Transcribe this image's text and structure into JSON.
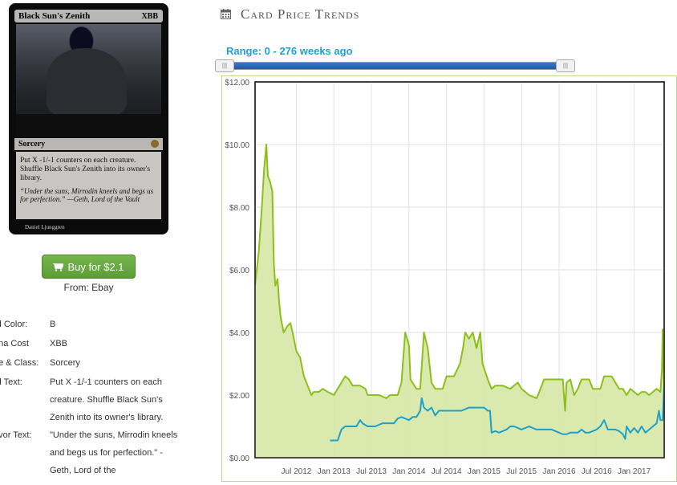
{
  "card": {
    "name": "Black Sun's Zenith",
    "mana_symbols": "XBB",
    "type_line": "Sorcery",
    "rules_text": "Put X -1/-1 counters on each creature. Shuffle Black Sun's Zenith into its owner's library.",
    "flavor_text": "“Under the suns, Mirrodin kneels and begs us for perfection.” —Geth, Lord of the Vault",
    "artist": "Daniel Ljunggren"
  },
  "buy": {
    "label": "Buy for $2.1",
    "icon": "cart-icon",
    "color": "#5fa33b"
  },
  "from": "From: Ebay",
  "attributes": [
    {
      "key": "rd Color:",
      "value": "B"
    },
    {
      "key": "ana Cost",
      "value": "XBB"
    },
    {
      "key": "pe & Class:",
      "value": "Sorcery"
    },
    {
      "key": "rd Text:",
      "value": "Put X -1/-1 counters on each creature. Shuffle Black Sun's Zenith into its owner's library."
    },
    {
      "key": "avor Text:",
      "value": "\"Under the suns, Mirrodin kneels and begs us for perfection.\" -Geth, Lord of the"
    }
  ],
  "trends": {
    "title": "Card Price Trends",
    "icon": "calendar-icon"
  },
  "range": {
    "label": "Range: 0 - 276 weeks ago",
    "min": 0,
    "max": 276,
    "handle_text": "|||"
  },
  "chart_data": {
    "type": "line",
    "x_labels": [
      "Jul 2012",
      "Jan 2013",
      "Jul 2013",
      "Jan 2014",
      "Jul 2014",
      "Jan 2015",
      "Jul 2015",
      "Jan 2016",
      "Jul 2016",
      "Jan 2017"
    ],
    "y_tick_labels": [
      "$0.00",
      "$2.00",
      "$4.00",
      "$6.00",
      "$8.00",
      "$10.00",
      "$12.00"
    ],
    "ylim": [
      0,
      12
    ],
    "xlim": [
      2011.95,
      2017.4
    ],
    "grid": true,
    "series": [
      {
        "color": "#8cbf1a",
        "fill": "#d6e8a6",
        "points": [
          [
            2011.95,
            5.5
          ],
          [
            2012.0,
            6.6
          ],
          [
            2012.04,
            8.0
          ],
          [
            2012.07,
            9.2
          ],
          [
            2012.1,
            10.0
          ],
          [
            2012.12,
            9.0
          ],
          [
            2012.15,
            8.8
          ],
          [
            2012.18,
            8.5
          ],
          [
            2012.2,
            6.2
          ],
          [
            2012.22,
            5.5
          ],
          [
            2012.25,
            5.7
          ],
          [
            2012.27,
            5.0
          ],
          [
            2012.29,
            4.5
          ],
          [
            2012.33,
            4.0
          ],
          [
            2012.38,
            4.2
          ],
          [
            2012.42,
            4.3
          ],
          [
            2012.45,
            4.0
          ],
          [
            2012.5,
            3.4
          ],
          [
            2012.55,
            3.2
          ],
          [
            2012.6,
            2.6
          ],
          [
            2012.65,
            2.3
          ],
          [
            2012.7,
            2.0
          ],
          [
            2012.73,
            2.1
          ],
          [
            2012.8,
            2.1
          ],
          [
            2012.85,
            2.2
          ],
          [
            2012.92,
            2.1
          ],
          [
            2013.0,
            2.0
          ],
          [
            2013.05,
            2.2
          ],
          [
            2013.1,
            2.4
          ],
          [
            2013.15,
            2.6
          ],
          [
            2013.2,
            2.5
          ],
          [
            2013.25,
            2.3
          ],
          [
            2013.3,
            2.3
          ],
          [
            2013.35,
            2.3
          ],
          [
            2013.42,
            2.2
          ],
          [
            2013.45,
            2.0
          ],
          [
            2013.55,
            2.0
          ],
          [
            2013.6,
            2.0
          ],
          [
            2013.7,
            1.9
          ],
          [
            2013.75,
            2.0
          ],
          [
            2013.85,
            2.0
          ],
          [
            2013.9,
            2.4
          ],
          [
            2013.95,
            4.0
          ],
          [
            2014.0,
            3.6
          ],
          [
            2014.02,
            2.5
          ],
          [
            2014.1,
            2.2
          ],
          [
            2014.15,
            2.2
          ],
          [
            2014.2,
            4.0
          ],
          [
            2014.25,
            3.5
          ],
          [
            2014.3,
            2.4
          ],
          [
            2014.35,
            2.2
          ],
          [
            2014.45,
            2.2
          ],
          [
            2014.5,
            2.6
          ],
          [
            2014.6,
            2.6
          ],
          [
            2014.68,
            3.0
          ],
          [
            2014.72,
            3.5
          ],
          [
            2014.75,
            4.0
          ],
          [
            2014.8,
            3.8
          ],
          [
            2014.85,
            4.0
          ],
          [
            2014.9,
            3.5
          ],
          [
            2014.95,
            4.0
          ],
          [
            2014.98,
            3.0
          ],
          [
            2015.05,
            2.5
          ],
          [
            2015.1,
            2.2
          ],
          [
            2015.15,
            2.3
          ],
          [
            2015.25,
            2.3
          ],
          [
            2015.35,
            2.2
          ],
          [
            2015.45,
            2.4
          ],
          [
            2015.5,
            2.2
          ],
          [
            2015.6,
            2.0
          ],
          [
            2015.7,
            1.9
          ],
          [
            2015.72,
            2.0
          ],
          [
            2015.8,
            2.5
          ],
          [
            2015.9,
            2.5
          ],
          [
            2016.0,
            2.5
          ],
          [
            2016.05,
            2.5
          ],
          [
            2016.08,
            1.5
          ],
          [
            2016.1,
            2.4
          ],
          [
            2016.15,
            2.5
          ],
          [
            2016.2,
            2.0
          ],
          [
            2016.25,
            2.2
          ],
          [
            2016.3,
            2.5
          ],
          [
            2016.4,
            2.5
          ],
          [
            2016.45,
            2.2
          ],
          [
            2016.55,
            2.2
          ],
          [
            2016.6,
            2.6
          ],
          [
            2016.7,
            2.6
          ],
          [
            2016.8,
            2.2
          ],
          [
            2016.85,
            2.2
          ],
          [
            2016.9,
            2.0
          ],
          [
            2016.95,
            2.2
          ],
          [
            2017.05,
            2.0
          ],
          [
            2017.1,
            2.1
          ],
          [
            2017.15,
            2.1
          ],
          [
            2017.2,
            2.0
          ],
          [
            2017.25,
            2.1
          ],
          [
            2017.3,
            2.2
          ],
          [
            2017.35,
            2.1
          ],
          [
            2017.37,
            2.8
          ],
          [
            2017.38,
            4.1
          ],
          [
            2017.4,
            2.2
          ]
        ]
      },
      {
        "color": "#1ea1c8",
        "points": [
          [
            2012.95,
            0.55
          ],
          [
            2013.05,
            0.55
          ],
          [
            2013.1,
            0.9
          ],
          [
            2013.15,
            1.0
          ],
          [
            2013.2,
            1.0
          ],
          [
            2013.25,
            1.0
          ],
          [
            2013.3,
            1.0
          ],
          [
            2013.35,
            1.2
          ],
          [
            2013.38,
            1.1
          ],
          [
            2013.45,
            1.0
          ],
          [
            2013.5,
            1.0
          ],
          [
            2013.55,
            1.0
          ],
          [
            2013.65,
            1.1
          ],
          [
            2013.72,
            1.1
          ],
          [
            2013.8,
            1.1
          ],
          [
            2013.85,
            1.25
          ],
          [
            2013.9,
            1.3
          ],
          [
            2014.0,
            1.2
          ],
          [
            2014.05,
            1.3
          ],
          [
            2014.1,
            1.3
          ],
          [
            2014.15,
            1.5
          ],
          [
            2014.17,
            1.9
          ],
          [
            2014.2,
            1.6
          ],
          [
            2014.25,
            1.5
          ],
          [
            2014.3,
            1.6
          ],
          [
            2014.35,
            1.35
          ],
          [
            2014.4,
            1.5
          ],
          [
            2014.45,
            1.5
          ],
          [
            2014.5,
            1.5
          ],
          [
            2014.6,
            1.5
          ],
          [
            2014.7,
            1.5
          ],
          [
            2014.8,
            1.6
          ],
          [
            2014.9,
            1.6
          ],
          [
            2015.0,
            1.6
          ],
          [
            2015.05,
            1.5
          ],
          [
            2015.08,
            1.5
          ],
          [
            2015.1,
            0.8
          ],
          [
            2015.15,
            0.85
          ],
          [
            2015.2,
            0.8
          ],
          [
            2015.3,
            0.9
          ],
          [
            2015.35,
            1.0
          ],
          [
            2015.4,
            1.0
          ],
          [
            2015.5,
            0.9
          ],
          [
            2015.6,
            1.0
          ],
          [
            2015.7,
            0.9
          ],
          [
            2015.8,
            0.9
          ],
          [
            2015.9,
            0.9
          ],
          [
            2016.0,
            0.8
          ],
          [
            2016.05,
            0.75
          ],
          [
            2016.1,
            0.75
          ],
          [
            2016.15,
            0.8
          ],
          [
            2016.2,
            0.8
          ],
          [
            2016.25,
            0.8
          ],
          [
            2016.3,
            0.9
          ],
          [
            2016.35,
            0.8
          ],
          [
            2016.4,
            0.8
          ],
          [
            2016.5,
            0.9
          ],
          [
            2016.55,
            1.0
          ],
          [
            2016.6,
            1.2
          ],
          [
            2016.65,
            0.9
          ],
          [
            2016.7,
            0.9
          ],
          [
            2016.75,
            0.9
          ],
          [
            2016.8,
            0.85
          ],
          [
            2016.85,
            0.75
          ],
          [
            2016.88,
            0.6
          ],
          [
            2016.9,
            1.0
          ],
          [
            2016.95,
            0.8
          ],
          [
            2017.0,
            0.95
          ],
          [
            2017.05,
            0.8
          ],
          [
            2017.1,
            1.0
          ],
          [
            2017.15,
            0.8
          ],
          [
            2017.2,
            0.9
          ],
          [
            2017.25,
            1.0
          ],
          [
            2017.3,
            1.1
          ],
          [
            2017.33,
            1.5
          ],
          [
            2017.35,
            1.2
          ],
          [
            2017.38,
            1.2
          ],
          [
            2017.4,
            2.3
          ]
        ]
      }
    ]
  }
}
